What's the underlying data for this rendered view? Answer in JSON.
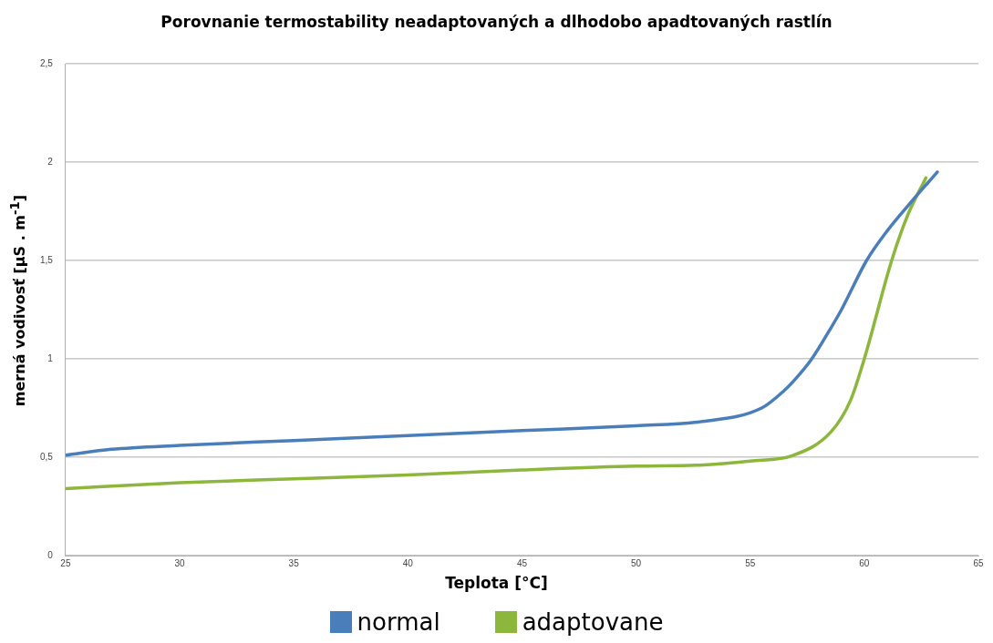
{
  "chart_data": {
    "type": "line",
    "title": "Porovnanie termostability neadaptovaných a dlhodobo apadtovaných rastlín",
    "xlabel": "Teplota  [°C]",
    "ylabel": "merná vodivosť  [µS . m$^{-1}$]",
    "xlim": [
      25,
      65
    ],
    "xticks": [
      25,
      30,
      35,
      40,
      45,
      50,
      55,
      60,
      65
    ],
    "ylim": [
      0,
      2.5
    ],
    "yticks": [
      0,
      {
        "value": 0.5,
        "label": "0,5"
      },
      1,
      {
        "value": 1.5,
        "label": "1,5"
      },
      2,
      {
        "value": 2.5,
        "label": "2,5"
      }
    ],
    "grid": "y",
    "legend": "bottom",
    "marker": "none",
    "line_style": "solid",
    "series": [
      {
        "name": "normal",
        "color": "#4a7ebb",
        "x": [
          25,
          27,
          30,
          35,
          40,
          45,
          50,
          52.8,
          55.5,
          56.5,
          57,
          57.7,
          58.5,
          59,
          60.1,
          61,
          62,
          63.2
        ],
        "values": [
          0.51,
          0.54,
          0.56,
          0.585,
          0.61,
          0.635,
          0.66,
          0.68,
          0.75,
          0.84,
          0.9,
          1.0,
          1.15,
          1.25,
          1.5,
          1.65,
          1.79,
          1.95
        ]
      },
      {
        "name": "adaptovane",
        "color": "#8cb63c",
        "x": [
          25,
          30,
          35,
          40,
          45,
          50,
          52.8,
          55,
          56.9,
          58.55,
          59.4,
          60,
          61.2,
          61.9,
          62.7
        ],
        "values": [
          0.34,
          0.37,
          0.39,
          0.41,
          0.435,
          0.455,
          0.46,
          0.48,
          0.51,
          0.63,
          0.79,
          1.0,
          1.5,
          1.73,
          1.92
        ]
      }
    ]
  }
}
